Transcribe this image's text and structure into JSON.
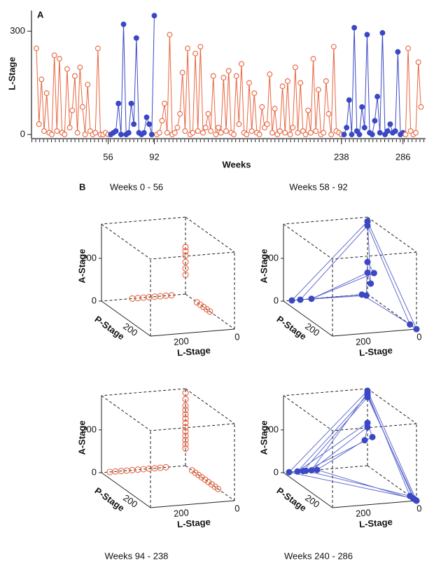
{
  "chart_data": [
    {
      "type": "line",
      "panel_label": "A",
      "x_label": "Weeks",
      "y_label": "L-Stage",
      "xlim": [
        0,
        302
      ],
      "ylim": [
        -12,
        360
      ],
      "xticks": [
        56,
        92,
        238,
        286
      ],
      "yticks": [
        0,
        300
      ],
      "series": [
        {
          "color": "#e8643f",
          "filled": false,
          "x": [
            0,
            2,
            4,
            6,
            8,
            10,
            12,
            14,
            16,
            18,
            20,
            22,
            24,
            26,
            28,
            30,
            32,
            34,
            36,
            38,
            40,
            42,
            44,
            46,
            48,
            50,
            52,
            54,
            56
          ],
          "values": [
            250,
            30,
            160,
            10,
            120,
            5,
            0,
            230,
            10,
            220,
            5,
            0,
            190,
            20,
            70,
            170,
            5,
            195,
            80,
            0,
            145,
            10,
            0,
            5,
            250,
            0,
            0,
            5,
            0
          ]
        },
        {
          "color": "#3b48c4",
          "filled": true,
          "x": [
            58,
            60,
            62,
            64,
            66,
            68,
            70,
            72,
            74,
            76,
            78,
            80,
            82,
            84,
            86,
            88,
            90,
            92
          ],
          "values": [
            0,
            5,
            10,
            90,
            0,
            320,
            0,
            5,
            90,
            30,
            280,
            5,
            0,
            5,
            50,
            30,
            0,
            345
          ]
        },
        {
          "color": "#e8643f",
          "filled": false,
          "x": [
            94,
            96,
            98,
            100,
            102,
            104,
            106,
            108,
            110,
            112,
            114,
            116,
            118,
            120,
            122,
            124,
            126,
            128,
            130,
            132,
            134,
            136,
            138,
            140,
            142,
            144,
            146,
            148,
            150,
            152,
            154,
            156,
            158,
            160,
            162,
            164,
            166,
            168,
            170,
            172,
            174,
            176,
            178,
            180,
            182,
            184,
            186,
            188,
            190,
            192,
            194,
            196,
            198,
            200,
            202,
            204,
            206,
            208,
            210,
            212,
            214,
            216,
            218,
            220,
            222,
            224,
            226,
            228,
            230,
            232,
            234,
            236,
            238
          ],
          "values": [
            0,
            5,
            40,
            90,
            5,
            290,
            0,
            5,
            20,
            60,
            180,
            10,
            250,
            0,
            5,
            235,
            10,
            255,
            5,
            20,
            60,
            10,
            170,
            0,
            20,
            5,
            165,
            10,
            185,
            5,
            0,
            170,
            30,
            205,
            5,
            0,
            150,
            10,
            120,
            5,
            0,
            80,
            20,
            30,
            175,
            5,
            75,
            0,
            10,
            140,
            5,
            155,
            0,
            20,
            195,
            5,
            150,
            10,
            0,
            70,
            5,
            220,
            10,
            130,
            0,
            5,
            155,
            60,
            0,
            255,
            10,
            5,
            0
          ]
        },
        {
          "color": "#3b48c4",
          "filled": true,
          "x": [
            240,
            242,
            244,
            246,
            248,
            250,
            252,
            254,
            256,
            258,
            260,
            262,
            264,
            266,
            268,
            270,
            272,
            274,
            276,
            278,
            280,
            282,
            284,
            286
          ],
          "values": [
            0,
            20,
            100,
            0,
            310,
            10,
            0,
            80,
            20,
            290,
            5,
            0,
            40,
            110,
            5,
            295,
            0,
            10,
            30,
            5,
            10,
            240,
            0,
            5
          ]
        },
        {
          "color": "#e8643f",
          "filled": false,
          "x": [
            288,
            290,
            292,
            294,
            296,
            298,
            300
          ],
          "values": [
            0,
            250,
            10,
            0,
            5,
            210,
            80
          ]
        }
      ]
    },
    {
      "type": "scatter3d",
      "panel_label": "B",
      "title": "Weeks 0 - 56",
      "color": "#e8643f",
      "filled": false,
      "connect": false,
      "x_label": "L-Stage",
      "y_label": "P-Stage",
      "z_label": "A-Stage",
      "xlim": [
        0,
        300
      ],
      "ylim": [
        0,
        300
      ],
      "zlim": [
        0,
        360
      ],
      "xticks": [
        0,
        200
      ],
      "yticks": [
        200
      ],
      "zticks": [
        0,
        200
      ],
      "x": [
        0,
        0,
        0,
        0,
        0,
        0,
        190,
        170,
        150,
        130,
        110,
        90,
        70,
        50,
        0,
        0,
        0,
        0,
        0
      ],
      "y": [
        0,
        0,
        0,
        0,
        0,
        0,
        0,
        0,
        0,
        0,
        0,
        0,
        0,
        0,
        150,
        130,
        110,
        90,
        70
      ],
      "z": [
        220,
        200,
        180,
        150,
        120,
        90,
        0,
        0,
        0,
        0,
        0,
        0,
        0,
        0,
        0,
        0,
        0,
        0,
        0
      ]
    },
    {
      "type": "scatter3d",
      "title": "Weeks 58 - 92",
      "color": "#3b48c4",
      "filled": true,
      "connect": true,
      "x_label": "L-Stage",
      "y_label": "P-Stage",
      "z_label": "A-Stage",
      "xlim": [
        0,
        300
      ],
      "ylim": [
        0,
        300
      ],
      "zlim": [
        0,
        360
      ],
      "xticks": [
        0,
        200
      ],
      "yticks": [
        200
      ],
      "zticks": [
        0,
        200
      ],
      "x": [
        0,
        0,
        270,
        20,
        0,
        0,
        240,
        10,
        0,
        0,
        200,
        0,
        0,
        0
      ],
      "y": [
        300,
        0,
        0,
        0,
        260,
        0,
        0,
        10,
        0,
        40,
        0,
        0,
        20,
        0
      ],
      "z": [
        0,
        340,
        0,
        0,
        0,
        320,
        0,
        0,
        150,
        120,
        0,
        100,
        60,
        340
      ]
    },
    {
      "type": "scatter3d",
      "title": "Weeks 94 - 238",
      "color": "#e8643f",
      "filled": false,
      "connect": false,
      "x_label": "L-Stage",
      "y_label": "P-Stage",
      "z_label": "A-Stage",
      "xlim": [
        0,
        300
      ],
      "ylim": [
        0,
        300
      ],
      "zlim": [
        0,
        360
      ],
      "xticks": [
        0,
        200
      ],
      "yticks": [
        200
      ],
      "zticks": [
        0,
        200
      ],
      "x": [
        0,
        0,
        0,
        0,
        0,
        0,
        0,
        0,
        0,
        0,
        0,
        0,
        0,
        270,
        250,
        230,
        210,
        190,
        170,
        150,
        130,
        110,
        90,
        70,
        0,
        0,
        0,
        0,
        0,
        0,
        0,
        0,
        0
      ],
      "y": [
        0,
        0,
        0,
        0,
        0,
        0,
        0,
        0,
        0,
        0,
        0,
        0,
        0,
        0,
        0,
        0,
        0,
        0,
        0,
        0,
        0,
        0,
        0,
        0,
        200,
        180,
        160,
        140,
        120,
        100,
        80,
        60,
        40
      ],
      "z": [
        340,
        310,
        280,
        260,
        240,
        220,
        200,
        180,
        160,
        140,
        120,
        100,
        80,
        0,
        0,
        0,
        0,
        0,
        0,
        0,
        0,
        0,
        0,
        0,
        0,
        0,
        0,
        0,
        0,
        0,
        0,
        0,
        0
      ]
    },
    {
      "type": "scatter3d",
      "title": "Weeks 240 - 286",
      "color": "#3b48c4",
      "filled": true,
      "connect": true,
      "x_label": "L-Stage",
      "y_label": "P-Stage",
      "z_label": "A-Stage",
      "xlim": [
        0,
        300
      ],
      "ylim": [
        0,
        300
      ],
      "zlim": [
        0,
        360
      ],
      "xticks": [
        0,
        200
      ],
      "yticks": [
        200
      ],
      "zticks": [
        0,
        200
      ],
      "x": [
        0,
        0,
        280,
        0,
        0,
        250,
        0,
        0,
        220,
        0,
        0,
        200,
        0,
        10,
        180,
        0,
        0,
        230
      ],
      "y": [
        300,
        0,
        0,
        280,
        0,
        0,
        0,
        30,
        0,
        260,
        0,
        0,
        0,
        0,
        0,
        290,
        0,
        0
      ],
      "z": [
        0,
        350,
        0,
        0,
        330,
        0,
        200,
        150,
        0,
        0,
        340,
        0,
        180,
        120,
        0,
        0,
        320,
        0
      ]
    }
  ]
}
